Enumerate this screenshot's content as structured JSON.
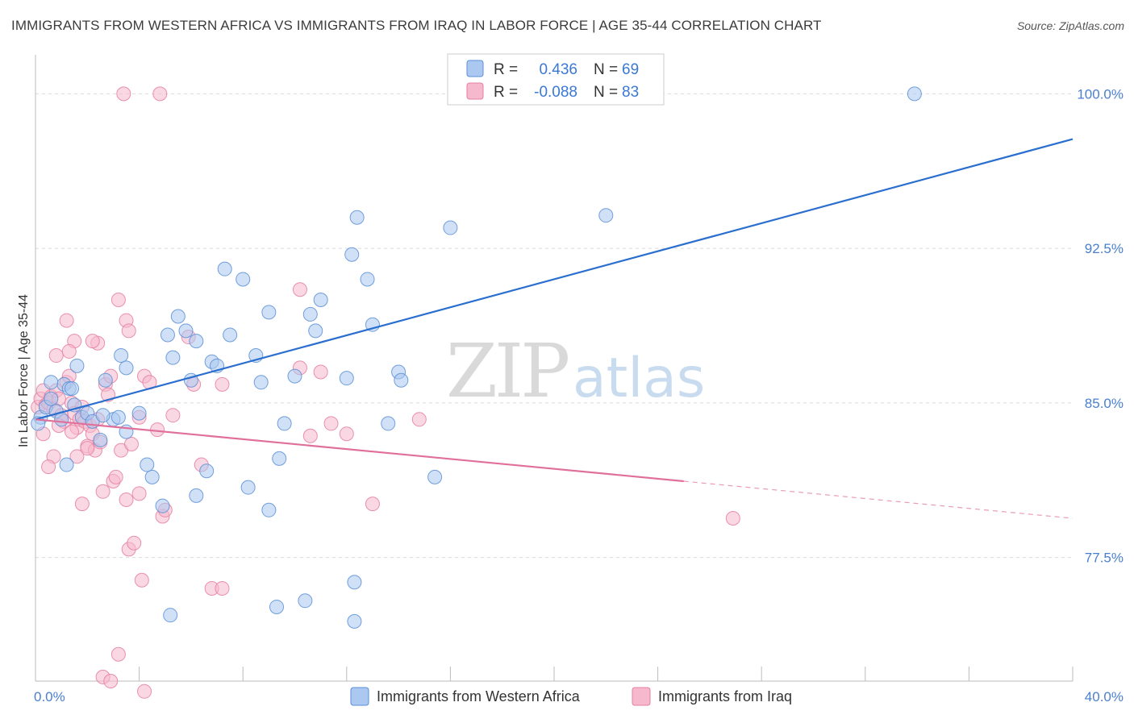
{
  "title": "IMMIGRANTS FROM WESTERN AFRICA VS IMMIGRANTS FROM IRAQ IN LABOR FORCE | AGE 35-44 CORRELATION CHART",
  "source": "Source: ZipAtlas.com",
  "watermark": {
    "zip": "ZIP",
    "atlas": "atlas"
  },
  "legend": {
    "rows": [
      {
        "r_label": "R =",
        "r_value": "0.436",
        "n_label": "N =",
        "n_value": "69"
      },
      {
        "r_label": "R =",
        "r_value": "-0.088",
        "n_label": "N =",
        "n_value": "83"
      }
    ]
  },
  "colors": {
    "blue_fill": "#aac8f0",
    "blue_stroke": "#5b8fd6",
    "blue_line": "#2a6fcf",
    "pink_fill": "#f6b8cc",
    "pink_stroke": "#e57fa0",
    "pink_line": "#e0709a",
    "tick_text": "#4a7fd0",
    "grid": "#dcdcdc"
  },
  "chart_data": {
    "type": "scatter",
    "xlabel": "",
    "ylabel": "In Labor Force | Age 35-44",
    "xlim": [
      0,
      40
    ],
    "ylim": [
      71.5,
      101.5
    ],
    "x_tick_labels": [
      {
        "value": 0,
        "label": "0.0%"
      },
      {
        "value": 40,
        "label": "40.0%"
      }
    ],
    "y_tick_labels": [
      {
        "value": 77.5,
        "label": "77.5%"
      },
      {
        "value": 85.0,
        "label": "85.0%"
      },
      {
        "value": 92.5,
        "label": "92.5%"
      },
      {
        "value": 100.0,
        "label": "100.0%"
      }
    ],
    "grid": true,
    "legend_position": "top-center",
    "series": [
      {
        "name": "Immigrants from Western Africa",
        "color": "#5b8fd6",
        "points": [
          [
            0.2,
            84.3
          ],
          [
            0.4,
            84.8
          ],
          [
            0.6,
            85.2
          ],
          [
            0.8,
            84.6
          ],
          [
            1.0,
            84.2
          ],
          [
            1.1,
            85.9
          ],
          [
            1.3,
            85.7
          ],
          [
            1.5,
            84.9
          ],
          [
            1.6,
            86.8
          ],
          [
            1.8,
            84.3
          ],
          [
            2.0,
            84.5
          ],
          [
            2.2,
            84.1
          ],
          [
            2.5,
            83.2
          ],
          [
            2.7,
            86.1
          ],
          [
            3.0,
            84.2
          ],
          [
            3.2,
            84.3
          ],
          [
            3.5,
            83.6
          ],
          [
            3.3,
            87.3
          ],
          [
            3.5,
            86.7
          ],
          [
            4.0,
            84.5
          ],
          [
            4.5,
            81.4
          ],
          [
            5.1,
            88.3
          ],
          [
            5.3,
            87.2
          ],
          [
            5.5,
            89.2
          ],
          [
            5.8,
            88.5
          ],
          [
            6.0,
            86.1
          ],
          [
            6.2,
            88.0
          ],
          [
            6.8,
            87.0
          ],
          [
            7.0,
            86.8
          ],
          [
            7.3,
            91.5
          ],
          [
            8.0,
            91.0
          ],
          [
            7.5,
            88.3
          ],
          [
            8.5,
            87.3
          ],
          [
            8.7,
            86.0
          ],
          [
            9.0,
            89.4
          ],
          [
            9.6,
            84.0
          ],
          [
            10.0,
            86.3
          ],
          [
            10.6,
            89.3
          ],
          [
            10.8,
            88.5
          ],
          [
            12.0,
            86.2
          ],
          [
            12.8,
            91.0
          ],
          [
            12.4,
            94.0
          ],
          [
            12.2,
            92.2
          ],
          [
            13.0,
            88.8
          ],
          [
            14.0,
            86.5
          ],
          [
            14.1,
            86.1
          ],
          [
            13.6,
            84.0
          ],
          [
            16.0,
            93.5
          ],
          [
            15.4,
            81.4
          ],
          [
            22.0,
            94.1
          ],
          [
            33.9,
            100.0
          ],
          [
            0.6,
            86.0
          ],
          [
            1.4,
            85.7
          ],
          [
            2.6,
            84.4
          ],
          [
            4.9,
            80.0
          ],
          [
            6.6,
            81.7
          ],
          [
            8.2,
            80.9
          ],
          [
            9.0,
            79.8
          ],
          [
            1.2,
            82.0
          ],
          [
            5.2,
            74.7
          ],
          [
            10.4,
            75.4
          ],
          [
            12.3,
            74.4
          ],
          [
            12.3,
            76.3
          ],
          [
            9.3,
            75.1
          ],
          [
            11.0,
            90.0
          ],
          [
            9.4,
            82.3
          ],
          [
            4.3,
            82.0
          ],
          [
            6.2,
            80.5
          ],
          [
            0.1,
            84.0
          ]
        ]
      },
      {
        "name": "Immigrants from Iraq",
        "color": "#e57fa0",
        "points": [
          [
            0.1,
            84.8
          ],
          [
            0.2,
            85.2
          ],
          [
            0.3,
            85.6
          ],
          [
            0.4,
            84.9
          ],
          [
            0.5,
            85.0
          ],
          [
            0.6,
            85.3
          ],
          [
            0.7,
            84.7
          ],
          [
            0.8,
            85.6
          ],
          [
            0.9,
            85.2
          ],
          [
            1.0,
            84.4
          ],
          [
            1.1,
            84.1
          ],
          [
            1.2,
            86.0
          ],
          [
            1.3,
            86.3
          ],
          [
            1.4,
            85.0
          ],
          [
            1.5,
            84.5
          ],
          [
            1.6,
            83.8
          ],
          [
            1.7,
            84.2
          ],
          [
            1.8,
            84.8
          ],
          [
            1.9,
            84.1
          ],
          [
            2.0,
            82.9
          ],
          [
            2.1,
            83.9
          ],
          [
            2.2,
            83.5
          ],
          [
            2.3,
            82.7
          ],
          [
            2.4,
            84.2
          ],
          [
            2.5,
            83.1
          ],
          [
            2.7,
            85.9
          ],
          [
            2.8,
            85.4
          ],
          [
            2.9,
            86.3
          ],
          [
            3.0,
            81.2
          ],
          [
            3.1,
            81.4
          ],
          [
            3.3,
            82.7
          ],
          [
            3.5,
            80.3
          ],
          [
            3.6,
            77.9
          ],
          [
            3.8,
            78.2
          ],
          [
            4.0,
            80.6
          ],
          [
            4.2,
            86.3
          ],
          [
            4.4,
            86.0
          ],
          [
            4.7,
            83.7
          ],
          [
            4.9,
            79.5
          ],
          [
            5.3,
            84.4
          ],
          [
            3.2,
            90.0
          ],
          [
            3.5,
            89.0
          ],
          [
            3.6,
            88.5
          ],
          [
            2.4,
            87.9
          ],
          [
            1.5,
            88.0
          ],
          [
            1.3,
            87.5
          ],
          [
            1.2,
            89.0
          ],
          [
            0.8,
            87.3
          ],
          [
            2.2,
            88.0
          ],
          [
            5.9,
            88.2
          ],
          [
            6.1,
            85.9
          ],
          [
            6.4,
            82.0
          ],
          [
            3.4,
            100.0
          ],
          [
            4.8,
            100.0
          ],
          [
            7.2,
            85.9
          ],
          [
            10.2,
            86.7
          ],
          [
            10.6,
            83.4
          ],
          [
            10.2,
            90.5
          ],
          [
            11.0,
            86.5
          ],
          [
            11.4,
            84.0
          ],
          [
            12.0,
            83.5
          ],
          [
            14.8,
            84.2
          ],
          [
            13.0,
            80.1
          ],
          [
            26.9,
            79.4
          ],
          [
            4.1,
            76.4
          ],
          [
            6.8,
            76.0
          ],
          [
            7.2,
            76.0
          ],
          [
            3.2,
            72.8
          ],
          [
            2.6,
            71.7
          ],
          [
            2.9,
            71.5
          ],
          [
            4.2,
            71.0
          ],
          [
            2.0,
            82.8
          ],
          [
            1.6,
            82.4
          ],
          [
            0.7,
            82.4
          ],
          [
            0.5,
            81.9
          ],
          [
            2.6,
            80.7
          ],
          [
            1.8,
            80.1
          ],
          [
            4.0,
            84.3
          ],
          [
            3.7,
            83.0
          ],
          [
            1.4,
            83.6
          ],
          [
            0.9,
            83.9
          ],
          [
            5.0,
            79.8
          ],
          [
            0.3,
            83.5
          ]
        ]
      }
    ],
    "trend_lines": [
      {
        "series": "Immigrants from Western Africa",
        "x": [
          0,
          40
        ],
        "y": [
          84.2,
          97.8
        ],
        "style": "solid"
      },
      {
        "series": "Immigrants from Iraq",
        "x": [
          0,
          25
        ],
        "y": [
          84.2,
          81.2
        ],
        "style": "solid"
      },
      {
        "series": "Immigrants from Iraq",
        "x": [
          25,
          40
        ],
        "y": [
          81.2,
          79.4
        ],
        "style": "dashed"
      }
    ]
  }
}
